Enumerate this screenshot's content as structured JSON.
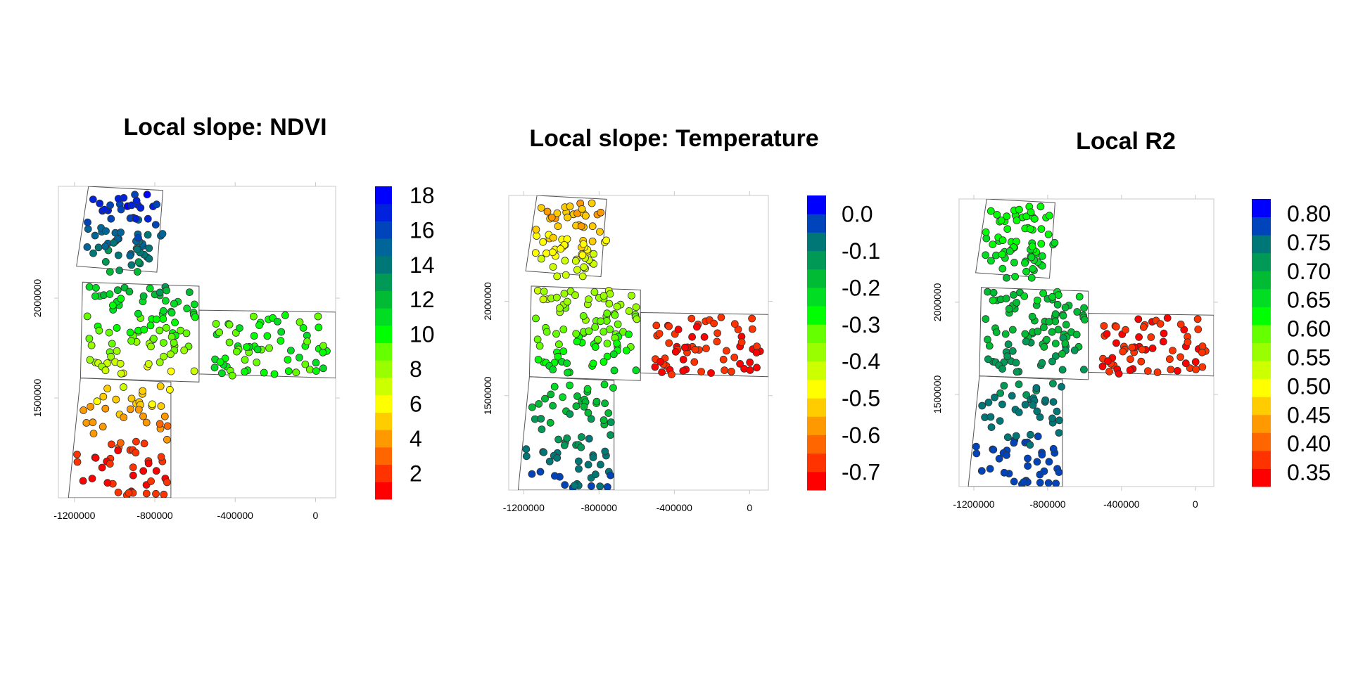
{
  "chart_data": [
    {
      "type": "scatter",
      "title": "Local slope: NDVI",
      "xlabel": "",
      "ylabel": "",
      "x_ticks": [
        "-1200000",
        "-800000",
        "-400000",
        "0"
      ],
      "y_ticks": [
        "1500000",
        "2000000"
      ],
      "xlim": [
        -1280000,
        100000
      ],
      "ylim": [
        1000000,
        2560000
      ],
      "grid": false,
      "colorbar": {
        "range": [
          0.5,
          18.5
        ],
        "ticks": [
          "2",
          "4",
          "6",
          "8",
          "10",
          "12",
          "14",
          "16",
          "18"
        ],
        "tick_values": [
          2,
          4,
          6,
          8,
          10,
          12,
          14,
          16,
          18
        ],
        "bin_colors": [
          "#ff0000",
          "#ff3300",
          "#ff6600",
          "#ff9900",
          "#ffcc00",
          "#ffff00",
          "#ccff00",
          "#99ff00",
          "#66ff00",
          "#00ff00",
          "#00dd22",
          "#00bb33",
          "#009955",
          "#007777",
          "#006699",
          "#0044bb",
          "#0022dd",
          "#0000ff"
        ]
      },
      "field_gradient": {
        "north_x": -860000,
        "north_y": 2470000,
        "north_value": 17,
        "south_x": -840000,
        "south_y": 1190000,
        "south_value": 1.5,
        "east_value": 10
      },
      "regions": [
        {
          "name": "north",
          "points": 72,
          "x": [
            -1140000,
            -760000
          ],
          "y": [
            2130000,
            2520000
          ]
        },
        {
          "name": "middle",
          "points": 95,
          "x": [
            -1150000,
            -590000
          ],
          "y": [
            1620000,
            2060000
          ]
        },
        {
          "name": "east",
          "points": 65,
          "x": [
            -510000,
            60000
          ],
          "y": [
            1610000,
            1920000
          ]
        },
        {
          "name": "south",
          "points": 75,
          "x": [
            -1190000,
            -720000
          ],
          "y": [
            1010000,
            1560000
          ]
        }
      ]
    },
    {
      "type": "scatter",
      "title": "Local slope: Temperature",
      "xlabel": "",
      "ylabel": "",
      "x_ticks": [
        "-1200000",
        "-800000",
        "-400000",
        "0"
      ],
      "y_ticks": [
        "1500000",
        "2000000"
      ],
      "xlim": [
        -1280000,
        100000
      ],
      "ylim": [
        1000000,
        2560000
      ],
      "grid": false,
      "colorbar": {
        "range": [
          -0.75,
          0.05
        ],
        "ticks": [
          "0.0",
          "-0.1",
          "-0.2",
          "-0.3",
          "-0.4",
          "-0.5",
          "-0.6",
          "-0.7"
        ],
        "tick_values": [
          0.0,
          -0.1,
          -0.2,
          -0.3,
          -0.4,
          -0.5,
          -0.6,
          -0.7
        ],
        "bin_colors": [
          "#ff0000",
          "#ff3300",
          "#ff6600",
          "#ff9900",
          "#ffcc00",
          "#ffff00",
          "#ccff00",
          "#99ff00",
          "#66ff00",
          "#00ff00",
          "#00dd22",
          "#00bb33",
          "#009955",
          "#007777",
          "#0044bb",
          "#0000ff"
        ]
      },
      "field_gradient": {
        "north_x": -860000,
        "north_y": 2470000,
        "north_value": -0.55,
        "south_x": -720000,
        "south_y": 1100000,
        "south_value": -0.05,
        "east_value": -0.7
      },
      "regions": [
        {
          "name": "north",
          "points": 72,
          "x": [
            -1140000,
            -760000
          ],
          "y": [
            2130000,
            2520000
          ]
        },
        {
          "name": "middle",
          "points": 95,
          "x": [
            -1150000,
            -590000
          ],
          "y": [
            1620000,
            2060000
          ]
        },
        {
          "name": "east",
          "points": 65,
          "x": [
            -510000,
            60000
          ],
          "y": [
            1610000,
            1920000
          ]
        },
        {
          "name": "south",
          "points": 75,
          "x": [
            -1190000,
            -720000
          ],
          "y": [
            1010000,
            1560000
          ]
        }
      ]
    },
    {
      "type": "scatter",
      "title": "Local R2",
      "xlabel": "",
      "ylabel": "",
      "x_ticks": [
        "-1200000",
        "-800000",
        "-400000",
        "0"
      ],
      "y_ticks": [
        "1500000",
        "2000000"
      ],
      "xlim": [
        -1280000,
        100000
      ],
      "ylim": [
        1000000,
        2560000
      ],
      "grid": false,
      "colorbar": {
        "range": [
          0.325,
          0.825
        ],
        "ticks": [
          "0.80",
          "0.75",
          "0.70",
          "0.65",
          "0.60",
          "0.55",
          "0.50",
          "0.45",
          "0.40",
          "0.35"
        ],
        "tick_values": [
          0.8,
          0.75,
          0.7,
          0.65,
          0.6,
          0.55,
          0.5,
          0.45,
          0.4,
          0.35
        ],
        "bin_colors": [
          "#ff0000",
          "#ff3300",
          "#ff6600",
          "#ff9900",
          "#ffcc00",
          "#ffff00",
          "#ccff00",
          "#99ff00",
          "#66ff00",
          "#00ff00",
          "#00dd22",
          "#00bb33",
          "#009955",
          "#007777",
          "#0044bb",
          "#0000ff"
        ]
      },
      "field_gradient": {
        "north_x": -860000,
        "north_y": 2470000,
        "north_value": 0.62,
        "south_x": -720000,
        "south_y": 1100000,
        "south_value": 0.78,
        "east_value": 0.36
      },
      "regions": [
        {
          "name": "north",
          "points": 72,
          "x": [
            -1140000,
            -760000
          ],
          "y": [
            2130000,
            2520000
          ]
        },
        {
          "name": "middle",
          "points": 95,
          "x": [
            -1150000,
            -590000
          ],
          "y": [
            1620000,
            2060000
          ]
        },
        {
          "name": "east",
          "points": 65,
          "x": [
            -510000,
            60000
          ],
          "y": [
            1610000,
            1920000
          ]
        },
        {
          "name": "south",
          "points": 75,
          "x": [
            -1190000,
            -720000
          ],
          "y": [
            1010000,
            1560000
          ]
        }
      ]
    }
  ]
}
